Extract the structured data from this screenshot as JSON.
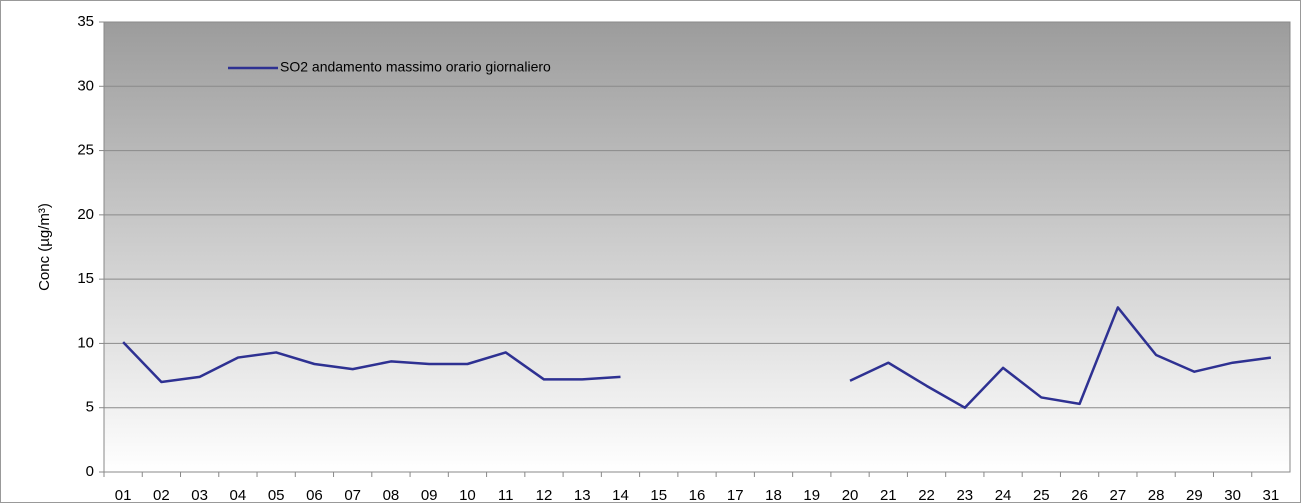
{
  "chart_data": {
    "type": "line",
    "y_label": "Conc (µg/m³)",
    "categories": [
      "01",
      "02",
      "03",
      "04",
      "05",
      "06",
      "07",
      "08",
      "09",
      "10",
      "11",
      "12",
      "13",
      "14",
      "15",
      "16",
      "17",
      "18",
      "19",
      "20",
      "21",
      "22",
      "23",
      "24",
      "25",
      "26",
      "27",
      "28",
      "29",
      "30",
      "31"
    ],
    "series": [
      {
        "name": "SO2 andamento massimo orario giornaliero",
        "color": "#2e3192",
        "values": [
          10.1,
          7.0,
          7.4,
          8.9,
          9.3,
          8.4,
          8.0,
          8.6,
          8.4,
          8.4,
          9.3,
          7.2,
          7.2,
          7.4,
          null,
          null,
          null,
          null,
          null,
          7.1,
          8.5,
          6.7,
          5.0,
          8.1,
          5.8,
          5.3,
          12.8,
          9.1,
          7.8,
          8.5,
          8.9
        ]
      }
    ],
    "ylim": [
      0,
      35
    ],
    "yticks": [
      0,
      5,
      10,
      15,
      20,
      25,
      30,
      35
    ],
    "grid": true,
    "legend": "top-left"
  }
}
